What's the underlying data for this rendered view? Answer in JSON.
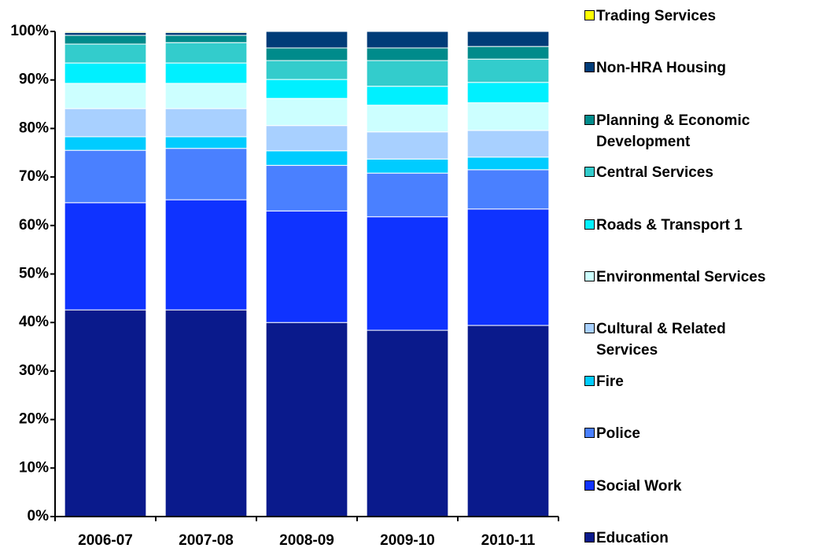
{
  "chart_data": {
    "type": "stacked_bar_100",
    "categories": [
      "2006-07",
      "2007-08",
      "2008-09",
      "2009-10",
      "2010-11"
    ],
    "series": [
      {
        "name": "Education",
        "color": "#0a1a8c",
        "values": [
          42.6,
          42.6,
          40.0,
          38.4,
          39.4
        ]
      },
      {
        "name": "Social Work",
        "color": "#0f33ff",
        "values": [
          22.1,
          22.7,
          23.0,
          23.4,
          24.0
        ]
      },
      {
        "name": "Police",
        "color": "#4a80ff",
        "values": [
          10.8,
          10.6,
          9.4,
          9.0,
          8.1
        ]
      },
      {
        "name": "Fire",
        "color": "#00ccff",
        "values": [
          2.8,
          2.4,
          3.0,
          2.9,
          2.6
        ]
      },
      {
        "name": "Cultural & Related Services",
        "color": "#a8d0ff",
        "values": [
          5.8,
          5.8,
          5.2,
          5.6,
          5.5
        ]
      },
      {
        "name": "Environmental Services",
        "color": "#ccffff",
        "values": [
          5.2,
          5.2,
          5.6,
          5.5,
          5.7
        ]
      },
      {
        "name": "Roads & Transport 1",
        "color": "#00f0ff",
        "values": [
          4.2,
          4.2,
          3.9,
          3.9,
          4.2
        ]
      },
      {
        "name": "Central Services",
        "color": "#33cccc",
        "values": [
          3.9,
          4.2,
          3.9,
          5.3,
          4.8
        ]
      },
      {
        "name": "Planning & Economic Development",
        "color": "#008b8b",
        "values": [
          1.8,
          1.5,
          2.6,
          2.6,
          2.6
        ]
      },
      {
        "name": "Non-HRA Housing",
        "color": "#003c78",
        "values": [
          0.6,
          0.6,
          3.4,
          3.4,
          3.1
        ]
      },
      {
        "name": "Trading Services",
        "color": "#ffff00",
        "values": [
          0.2,
          0.2,
          0,
          0,
          0
        ]
      }
    ],
    "ylim": [
      0,
      100
    ],
    "yticks": [
      {
        "value": 0,
        "label": "0%"
      },
      {
        "value": 10,
        "label": "10%"
      },
      {
        "value": 20,
        "label": "20%"
      },
      {
        "value": 30,
        "label": "30%"
      },
      {
        "value": 40,
        "label": "40%"
      },
      {
        "value": 50,
        "label": "50%"
      },
      {
        "value": 60,
        "label": "60%"
      },
      {
        "value": 70,
        "label": "70%"
      },
      {
        "value": 80,
        "label": "80%"
      },
      {
        "value": 90,
        "label": "90%"
      },
      {
        "value": 100,
        "label": "100%"
      }
    ],
    "grid": false,
    "legend": "right"
  }
}
